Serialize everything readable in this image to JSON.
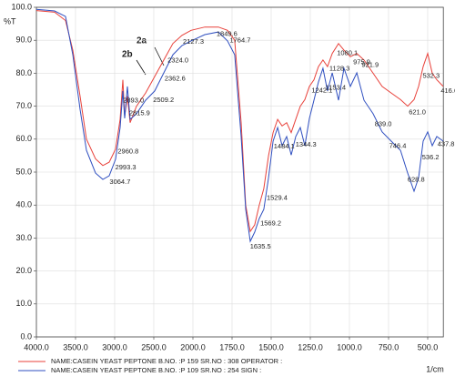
{
  "chart_data": {
    "type": "line",
    "y_label": "%T",
    "x_label": "1/cm",
    "annotations": [
      "2a",
      "2b"
    ],
    "xlim": [
      4000,
      400
    ],
    "xticks": [
      {
        "value": 4000,
        "label": "4000.0"
      },
      {
        "value": 3500,
        "label": "3500.0"
      },
      {
        "value": 3000,
        "label": "3000.0"
      },
      {
        "value": 2500,
        "label": "2500.0"
      },
      {
        "value": 2000,
        "label": "2000.0"
      },
      {
        "value": 1750,
        "label": "1750.0"
      },
      {
        "value": 1500,
        "label": "1500.0"
      },
      {
        "value": 1250,
        "label": "1250.0"
      },
      {
        "value": 1000,
        "label": "1000.0"
      },
      {
        "value": 750,
        "label": "750.0"
      },
      {
        "value": 500,
        "label": "500.0"
      }
    ],
    "ylim": [
      0,
      100
    ],
    "yticks": [
      {
        "value": 0,
        "label": "0.0"
      },
      {
        "value": 10,
        "label": "10.0"
      },
      {
        "value": 20,
        "label": "20.0"
      },
      {
        "value": 30,
        "label": "30.0"
      },
      {
        "value": 40,
        "label": "40.0"
      },
      {
        "value": 50,
        "label": "50.0"
      },
      {
        "value": 60,
        "label": "60.0"
      },
      {
        "value": 70,
        "label": "70.0"
      },
      {
        "value": 80,
        "label": "80.0"
      },
      {
        "value": 90,
        "label": "90.0"
      },
      {
        "value": 100,
        "label": "100.0"
      }
    ],
    "grid": true,
    "peak_label_color": "#e02020",
    "x": [
      4000,
      3767,
      3628,
      3535,
      3442,
      3360,
      3244,
      3151,
      3070,
      2988,
      2930,
      2895,
      2872,
      2837,
      2802,
      2721,
      2605,
      2488,
      2372,
      2256,
      2140,
      2023,
      1924,
      1837,
      1779,
      1733,
      1692,
      1663,
      1634,
      1605,
      1576,
      1547,
      1517,
      1488,
      1459,
      1430,
      1401,
      1372,
      1343,
      1314,
      1285,
      1256,
      1227,
      1198,
      1169,
      1140,
      1110,
      1070,
      1035,
      994,
      953,
      907,
      849,
      791,
      733,
      674,
      628,
      587,
      558,
      529,
      500,
      471,
      442,
      401
    ],
    "series": [
      {
        "name": "NAME:CASEIN YEAST PEPTONE  B.NO. :P 159 SR.NO : 308 OPERATOR :",
        "color": "#e8413a",
        "values": [
          99,
          98.5,
          96,
          87,
          73,
          60,
          54,
          52,
          53,
          57,
          66,
          78,
          67,
          73,
          65,
          70,
          74,
          79,
          84,
          89,
          91.5,
          93,
          94,
          94,
          93,
          90,
          65,
          40,
          32,
          34,
          40,
          45,
          55,
          62,
          66,
          64,
          65,
          62,
          66,
          70,
          72,
          76,
          78,
          82,
          84,
          82,
          86,
          89,
          87,
          85,
          86,
          84,
          80,
          76,
          74,
          72,
          70,
          72,
          76,
          82,
          86,
          80,
          78,
          76
        ],
        "peaks": [
          {
            "value": 2127.3,
            "label": "2127.3"
          },
          {
            "value": 2324,
            "label": "2324.0"
          },
          {
            "value": 1849.6,
            "label": "1849.6"
          },
          {
            "value": 1764.7,
            "label": "1764.7"
          },
          {
            "value": 1242.1,
            "label": "1242.1"
          },
          {
            "value": 1128.3,
            "label": "1128.3"
          },
          {
            "value": 1080.1,
            "label": "1080.1"
          },
          {
            "value": 975.9,
            "label": "975.9"
          },
          {
            "value": 921.9,
            "label": "921.9"
          },
          {
            "value": 621,
            "label": "621.0"
          },
          {
            "value": 532.3,
            "label": "532.3"
          },
          {
            "value": 416.6,
            "label": "416.6"
          }
        ]
      },
      {
        "name": "NAME:CASEIN YEAST PEPTONE  B.NO. :P 109  SR.NO : 254  SIGN    :",
        "color": "#2f4fc0",
        "values": [
          99.4,
          98.9,
          97.2,
          85.6,
          69,
          56.6,
          49.7,
          47.8,
          48.9,
          53.9,
          63.5,
          74.6,
          66.3,
          76,
          66,
          67.7,
          71.8,
          74.6,
          80.1,
          85.6,
          88.4,
          89.8,
          91.7,
          92.5,
          89.8,
          85.6,
          60.8,
          38.7,
          29,
          31.8,
          35.9,
          38.7,
          48.3,
          59.4,
          63.5,
          58,
          60.8,
          55.2,
          60.8,
          63.5,
          58,
          66.3,
          71.8,
          77.3,
          81.5,
          74.6,
          80.1,
          71.8,
          81.5,
          76,
          80.1,
          71.8,
          67.7,
          62.2,
          59.4,
          56.6,
          49.7,
          44.2,
          48.3,
          59.4,
          62.2,
          58,
          60.8,
          59.4
        ],
        "peaks": [
          {
            "value": 3064.7,
            "label": "3064.7"
          },
          {
            "value": 2993.3,
            "label": "2993.3"
          },
          {
            "value": 2960.8,
            "label": "2960.8"
          },
          {
            "value": 2893,
            "label": "2893.0"
          },
          {
            "value": 2815.9,
            "label": "2815.9"
          },
          {
            "value": 2509.2,
            "label": "2509.2"
          },
          {
            "value": 2362.6,
            "label": "2362.6"
          },
          {
            "value": 1635.5,
            "label": "1635.5"
          },
          {
            "value": 1569.2,
            "label": "1569.2"
          },
          {
            "value": 1529.4,
            "label": "1529.4"
          },
          {
            "value": 1484.1,
            "label": "1484.1"
          },
          {
            "value": 1344.3,
            "label": "1344.3"
          },
          {
            "value": 1153.4,
            "label": "1153.4"
          },
          {
            "value": 839,
            "label": "839.0"
          },
          {
            "value": 746.4,
            "label": "746.4"
          },
          {
            "value": 628.8,
            "label": "628.8"
          },
          {
            "value": 536.2,
            "label": "536.2"
          },
          {
            "value": 437.8,
            "label": "437.8"
          }
        ]
      }
    ]
  }
}
